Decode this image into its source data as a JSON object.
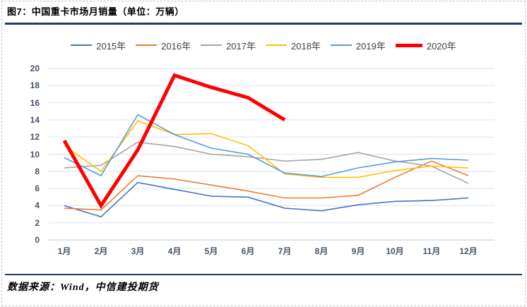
{
  "header": {
    "title": "图7：中国重卡市场月销量（单位：万辆）"
  },
  "footer": {
    "source": "数据来源：Wind，中信建投期货"
  },
  "chart_data": {
    "type": "line",
    "title": "中国重卡市场月销量",
    "unit": "万辆",
    "xlabel": "",
    "ylabel": "",
    "ylim": [
      0,
      20
    ],
    "ytick": 2,
    "grid": true,
    "legend_position": "top",
    "categories": [
      "1月",
      "2月",
      "3月",
      "4月",
      "5月",
      "6月",
      "7月",
      "8月",
      "9月",
      "10月",
      "11月",
      "12月"
    ],
    "series": [
      {
        "name": "2015年",
        "color": "#4472C4",
        "width": 1.6,
        "values": [
          4.0,
          2.7,
          6.7,
          5.9,
          5.1,
          5.0,
          3.7,
          3.4,
          4.1,
          4.5,
          4.6,
          4.9
        ]
      },
      {
        "name": "2016年",
        "color": "#ED7D31",
        "width": 1.6,
        "values": [
          3.7,
          3.5,
          7.5,
          7.1,
          6.4,
          5.7,
          4.9,
          4.9,
          5.2,
          7.3,
          9.2,
          7.5
        ]
      },
      {
        "name": "2017年",
        "color": "#A5A5A5",
        "width": 1.6,
        "values": [
          8.4,
          8.7,
          11.4,
          10.9,
          10.0,
          9.7,
          9.2,
          9.4,
          10.2,
          9.2,
          8.6,
          6.6
        ]
      },
      {
        "name": "2018年",
        "color": "#FFC000",
        "width": 1.6,
        "values": [
          11.0,
          8.0,
          13.9,
          12.3,
          12.4,
          11.0,
          7.7,
          7.3,
          7.3,
          8.1,
          8.6,
          8.4
        ]
      },
      {
        "name": "2019年",
        "color": "#5B9BD5",
        "width": 1.6,
        "values": [
          9.6,
          7.5,
          14.6,
          12.3,
          10.7,
          10.0,
          7.8,
          7.4,
          8.4,
          9.1,
          9.5,
          9.3
        ]
      },
      {
        "name": "2020年",
        "color": "#FF0000",
        "width": 5,
        "values": [
          11.6,
          4.0,
          10.5,
          19.2,
          17.8,
          16.6,
          14.0,
          null,
          null,
          null,
          null,
          null
        ]
      }
    ]
  },
  "colors": {
    "rule": "#263A5E",
    "grid": "#D9E2F3",
    "axis_line": "#BFC8D6",
    "tick_text": "#44546A",
    "legend_text": "#3f3f3f"
  }
}
